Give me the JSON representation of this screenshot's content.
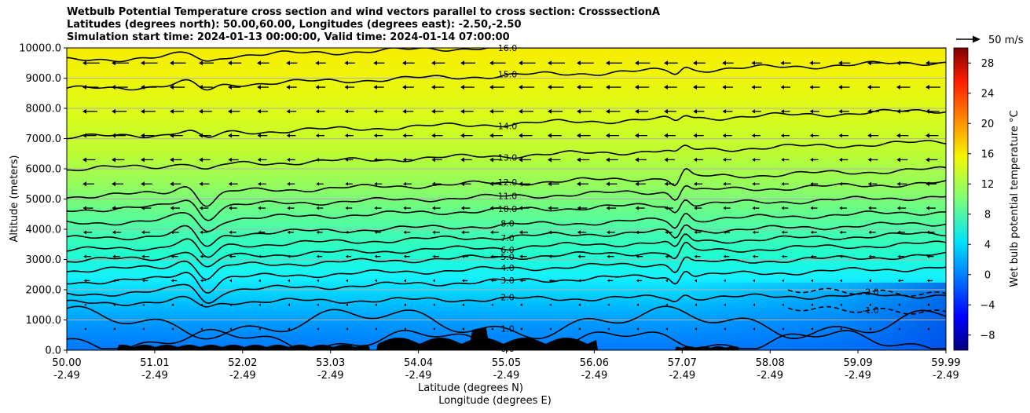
{
  "chart_data": {
    "type": "contour",
    "title_lines": [
      "Wetbulb Potential Temperature cross section and wind vectors parallel to cross section: CrosssectionA",
      "Latitudes (degrees north): 50.00,60.00, Longitudes (degrees east): -2.50,-2.50",
      "Simulation start time: 2024-01-13 00:00:00, Valid time: 2024-01-14 07:00:00"
    ],
    "ylabel": "Altitude (meters)",
    "xlabel": "Latitude (degrees N)",
    "xlabel2": "Longitude (degrees E)",
    "ylim": [
      0,
      10000
    ],
    "xlim": [
      50.0,
      59.99
    ],
    "yticks": [
      {
        "v": 0,
        "label": "0.0"
      },
      {
        "v": 1000,
        "label": "1000.0"
      },
      {
        "v": 2000,
        "label": "2000.0"
      },
      {
        "v": 3000,
        "label": "3000.0"
      },
      {
        "v": 4000,
        "label": "4000.0"
      },
      {
        "v": 5000,
        "label": "5000.0"
      },
      {
        "v": 6000,
        "label": "6000.0"
      },
      {
        "v": 7000,
        "label": "7000.0"
      },
      {
        "v": 8000,
        "label": "8000.0"
      },
      {
        "v": 9000,
        "label": "9000.0"
      },
      {
        "v": 10000,
        "label": "10000.0"
      }
    ],
    "xticks": [
      {
        "lat": "50.00",
        "lon": "-2.49"
      },
      {
        "lat": "51.01",
        "lon": "-2.49"
      },
      {
        "lat": "52.02",
        "lon": "-2.49"
      },
      {
        "lat": "53.03",
        "lon": "-2.49"
      },
      {
        "lat": "54.04",
        "lon": "-2.49"
      },
      {
        "lat": "55.05",
        "lon": "-2.49"
      },
      {
        "lat": "56.06",
        "lon": "-2.49"
      },
      {
        "lat": "57.07",
        "lon": "-2.49"
      },
      {
        "lat": "58.08",
        "lon": "-2.49"
      },
      {
        "lat": "59.09",
        "lon": "-2.49"
      },
      {
        "lat": "59.99",
        "lon": "-2.49"
      }
    ],
    "horizontal_gridlines": true,
    "colorbar": {
      "label": "Wet bulb potential temperature °C",
      "min": -10,
      "max": 30,
      "ticks": [
        "-8",
        "-4",
        "0",
        "4",
        "8",
        "12",
        "16",
        "20",
        "24",
        "28"
      ],
      "colormap": "jet"
    },
    "vector_key": {
      "label": "50 m/s",
      "speed": 50
    },
    "contours": [
      {
        "level": "-2.0",
        "dashed": true,
        "base": 2000
      },
      {
        "level": "-1.0",
        "dashed": true,
        "base": 1400
      },
      {
        "level": "0.0",
        "dashed": false,
        "base": 320
      },
      {
        "level": "1.0",
        "dashed": false,
        "base": 1000
      },
      {
        "level": "2.0",
        "dashed": false,
        "base": 1650
      },
      {
        "level": "3.0",
        "dashed": false,
        "base": 2150
      },
      {
        "level": "4.0",
        "dashed": false,
        "base": 2560
      },
      {
        "level": "5.0",
        "dashed": false,
        "base": 2950
      },
      {
        "level": "6.0",
        "dashed": false,
        "base": 3270
      },
      {
        "level": "7.0",
        "dashed": false,
        "base": 3620
      },
      {
        "level": "8.0",
        "dashed": false,
        "base": 4000
      },
      {
        "level": "10.0",
        "dashed": false,
        "base": 4500
      },
      {
        "level": "11.0",
        "dashed": false,
        "base": 4950
      },
      {
        "level": "12.0",
        "dashed": false,
        "base": 5400
      },
      {
        "level": "13.0",
        "dashed": false,
        "base": 6300
      },
      {
        "level": "14.0",
        "dashed": false,
        "base": 7350
      },
      {
        "level": "15.0",
        "dashed": false,
        "base": 8950
      },
      {
        "level": "16.0",
        "dashed": false,
        "base": 9900
      }
    ],
    "colors": {
      "contour_line": "#000000",
      "terrain": "#000000",
      "gridline": "#b0b0b0"
    }
  }
}
